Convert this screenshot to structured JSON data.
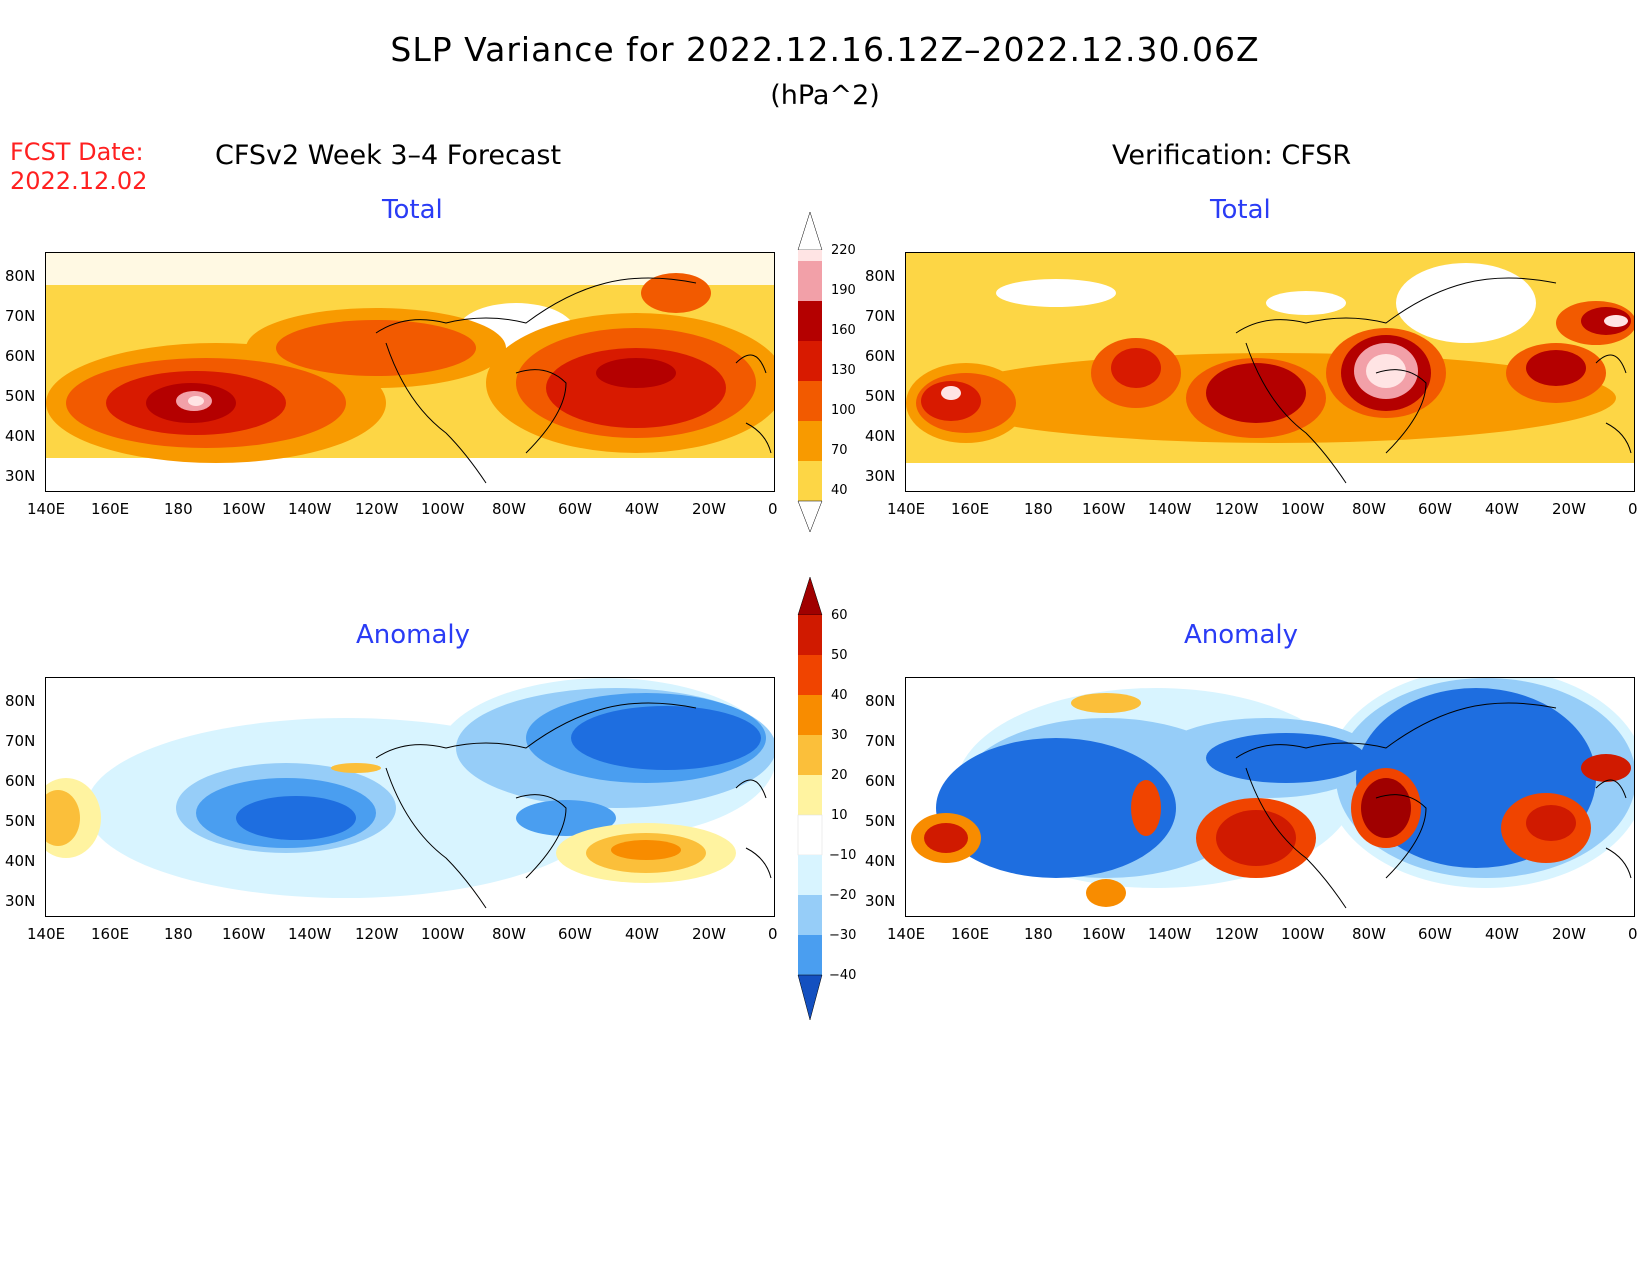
{
  "header": {
    "title": "SLP Variance for 2022.12.16.12Z–2022.12.30.06Z",
    "units": "(hPa^2)",
    "fcst_date_label": "FCST Date:",
    "fcst_date_value": "2022.12.02",
    "left_column_title": "CFSv2 Week 3–4 Forecast",
    "right_column_title": "Verification: CFSR"
  },
  "panels": {
    "fc_total_title": "Total",
    "ver_total_title": "Total",
    "fc_anom_title": "Anomaly",
    "ver_anom_title": "Anomaly"
  },
  "axes": {
    "lat_labels": [
      "80N",
      "70N",
      "60N",
      "50N",
      "40N",
      "30N"
    ],
    "lon_labels": [
      "140E",
      "160E",
      "180",
      "160W",
      "140W",
      "120W",
      "100W",
      "80W",
      "60W",
      "40W",
      "20W",
      "0"
    ]
  },
  "colorbar_total": {
    "labels": [
      "220",
      "190",
      "160",
      "130",
      "100",
      "70",
      "40"
    ],
    "colors": [
      "#ffe4e4",
      "#f2a0a8",
      "#b40000",
      "#d81a00",
      "#f25a00",
      "#f89a00",
      "#fdd645"
    ]
  },
  "colorbar_anomaly": {
    "labels": [
      "60",
      "50",
      "40",
      "30",
      "20",
      "10",
      "−10",
      "−20",
      "−30",
      "−40"
    ],
    "colors": [
      "#a00000",
      "#d01a00",
      "#f04400",
      "#f88c00",
      "#fbbf3a",
      "#fff3a0",
      "#ffffff",
      "#d8f4ff",
      "#96cdf8",
      "#4a9ef0",
      "#1e6ee0",
      "#1450c0"
    ]
  },
  "palette": {
    "title_color": "#000000",
    "fcst_color": "#ff2020",
    "panel_title_color": "#2a3cf5"
  }
}
